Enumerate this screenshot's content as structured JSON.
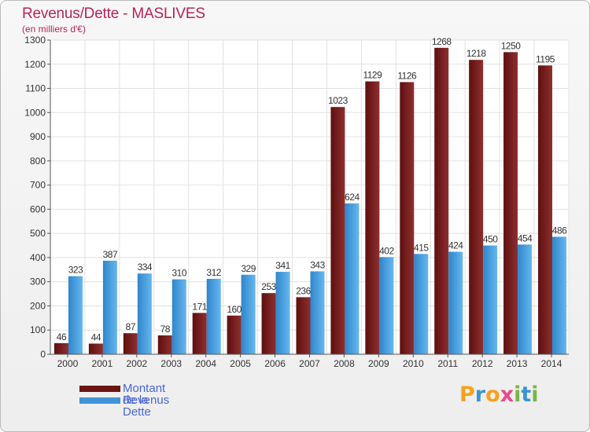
{
  "header": {
    "title": "Revenus/Dette - MASLIVES",
    "subtitle": "(en milliers d'€)"
  },
  "colors": {
    "debt": "#7a1a1a",
    "debt_light": "#a53a3a",
    "revenue": "#3f93d6",
    "revenue_light": "#64b6ee",
    "title": "#b8235a",
    "legend_text": "#4a67d8",
    "grid": "#e2e2e2",
    "axis": "#555555"
  },
  "legend": {
    "debt_label": "Montant de la Dette",
    "revenue_label": "Revenus"
  },
  "brand": {
    "letters": [
      "P",
      "r",
      "o",
      "x",
      "i",
      "t",
      "i"
    ],
    "colors": [
      "#f7a21b",
      "#3a94d6",
      "#f7a21b",
      "#e84b8a",
      "#7ab648",
      "#3a94d6",
      "#7ab648"
    ]
  },
  "chart_data": {
    "type": "bar",
    "title": "Revenus/Dette - MASLIVES",
    "ylabel": "(en milliers d'€)",
    "xlabel": "",
    "categories": [
      "2000",
      "2001",
      "2002",
      "2003",
      "2004",
      "2005",
      "2006",
      "2007",
      "2008",
      "2009",
      "2010",
      "2011",
      "2012",
      "2013",
      "2014"
    ],
    "series": [
      {
        "name": "Montant de la Dette",
        "values": [
          46,
          44,
          87,
          78,
          171,
          160,
          253,
          236,
          1023,
          1129,
          1126,
          1268,
          1218,
          1250,
          1195
        ]
      },
      {
        "name": "Revenus",
        "values": [
          323,
          387,
          334,
          310,
          312,
          329,
          341,
          343,
          624,
          402,
          415,
          424,
          450,
          454,
          486
        ]
      }
    ],
    "ylim": [
      0,
      1300
    ],
    "ytick_step": 100,
    "grid": true,
    "legend_position": "bottom-left"
  }
}
